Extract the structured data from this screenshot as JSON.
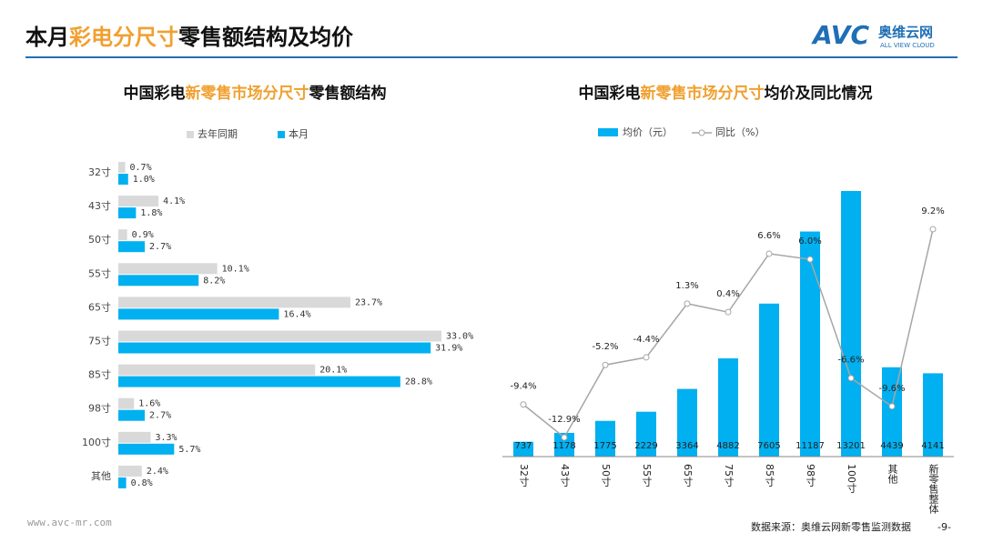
{
  "header": {
    "title": [
      "本月",
      "彩电分尺寸",
      "零售额结构及均价"
    ],
    "logo": "AVC",
    "logo_cn": "奥维云网",
    "logo_en": "ALL VIEW CLOUD"
  },
  "footer": {
    "website": "www.avc-mr.com",
    "source": "数据来源：奥维云网新零售监测数据",
    "page": "-9-"
  },
  "chart_data": [
    {
      "type": "hbar",
      "title": [
        "中国彩电",
        "新零售市场分尺寸",
        "零售额结构"
      ],
      "categories": [
        "32寸",
        "43寸",
        "50寸",
        "55寸",
        "65寸",
        "75寸",
        "85寸",
        "98寸",
        "100寸",
        "其他"
      ],
      "series": [
        {
          "name": "去年同期",
          "color": "#d9d9d9",
          "values": [
            0.7,
            4.1,
            0.9,
            10.1,
            23.7,
            33.0,
            20.1,
            1.6,
            3.3,
            2.4
          ],
          "value_labels": [
            "0.7%",
            "4.1%",
            "0.9%",
            "10.1%",
            "23.7%",
            "33.0%",
            "20.1%",
            "1.6%",
            "3.3%",
            "2.4%"
          ]
        },
        {
          "name": "本月",
          "color": "#00b0f0",
          "values": [
            1.0,
            1.8,
            2.7,
            8.2,
            16.4,
            31.9,
            28.8,
            2.7,
            5.7,
            0.8
          ],
          "value_labels": [
            "1.0%",
            "1.8%",
            "2.7%",
            "8.2%",
            "16.4%",
            "31.9%",
            "28.8%",
            "2.7%",
            "5.7%",
            "0.8%"
          ]
        }
      ]
    },
    {
      "type": "bar",
      "title": [
        "中国彩电",
        "新零售市场分尺寸",
        "均价及同比情况"
      ],
      "categories": [
        "32寸",
        "43寸",
        "50寸",
        "55寸",
        "65寸",
        "75寸",
        "85寸",
        "98寸",
        "100寸",
        "其他",
        "新零售整体"
      ],
      "series": [
        {
          "name": "均价（元）",
          "color": "#00b0f0",
          "values": [
            737,
            1178,
            1775,
            2229,
            3364,
            4882,
            7605,
            11187,
            13201,
            4439,
            4141
          ]
        },
        {
          "name": "同比（%）",
          "type": "line",
          "axis": "y2",
          "color": "#a6a6a6",
          "values": [
            -9.4,
            -12.9,
            -5.2,
            -4.4,
            1.3,
            0.4,
            6.6,
            6.0,
            -6.6,
            -9.6,
            9.2
          ],
          "value_labels": [
            "-9.4%",
            "-12.9%",
            "-5.2%",
            "-4.4%",
            "1.3%",
            "0.4%",
            "6.6%",
            "6.0%",
            "-6.6%",
            "-9.6%",
            "9.2%"
          ]
        }
      ]
    }
  ]
}
